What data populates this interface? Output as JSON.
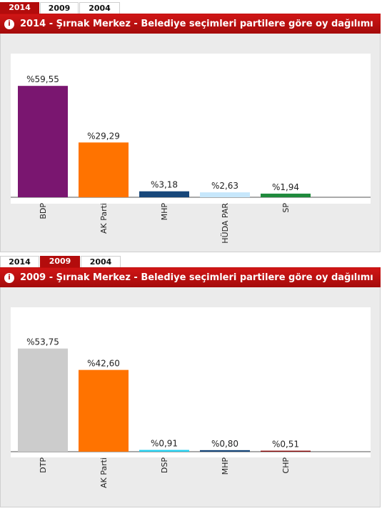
{
  "panels": [
    {
      "tabs": [
        {
          "label": "2014",
          "active": true
        },
        {
          "label": "2009",
          "active": false
        },
        {
          "label": "2004",
          "active": false
        }
      ],
      "title": "2014 - Şırnak Merkez - Belediye seçimleri partilere göre oy dağılımı",
      "chart_data": {
        "type": "bar",
        "categories": [
          "BDP",
          "AK Parti",
          "MHP",
          "HÜDA PAR",
          "SP"
        ],
        "values": [
          59.55,
          29.29,
          3.18,
          2.63,
          1.94
        ],
        "labels": [
          "%59,55",
          "%29,29",
          "%3,18",
          "%2,63",
          "%1,94"
        ],
        "colors": [
          "#7a1670",
          "#ff7300",
          "#17477a",
          "#c7e7fb",
          "#1f8a3c"
        ],
        "ylim": [
          0,
          60
        ]
      }
    },
    {
      "tabs": [
        {
          "label": "2014",
          "active": false
        },
        {
          "label": "2009",
          "active": true
        },
        {
          "label": "2004",
          "active": false
        }
      ],
      "title": "2009 - Şırnak Merkez - Belediye seçimleri partilere göre oy dağılımı",
      "chart_data": {
        "type": "bar",
        "categories": [
          "DTP",
          "AK Parti",
          "DSP",
          "MHP",
          "CHP"
        ],
        "values": [
          53.75,
          42.6,
          0.91,
          0.8,
          0.51
        ],
        "labels": [
          "%53,75",
          "%42,60",
          "%0,91",
          "%0,80",
          "%0,51"
        ],
        "colors": [
          "#cccccc",
          "#ff7300",
          "#27d0f0",
          "#17477a",
          "#8c0a0a"
        ],
        "ylim": [
          0,
          54
        ]
      }
    }
  ]
}
